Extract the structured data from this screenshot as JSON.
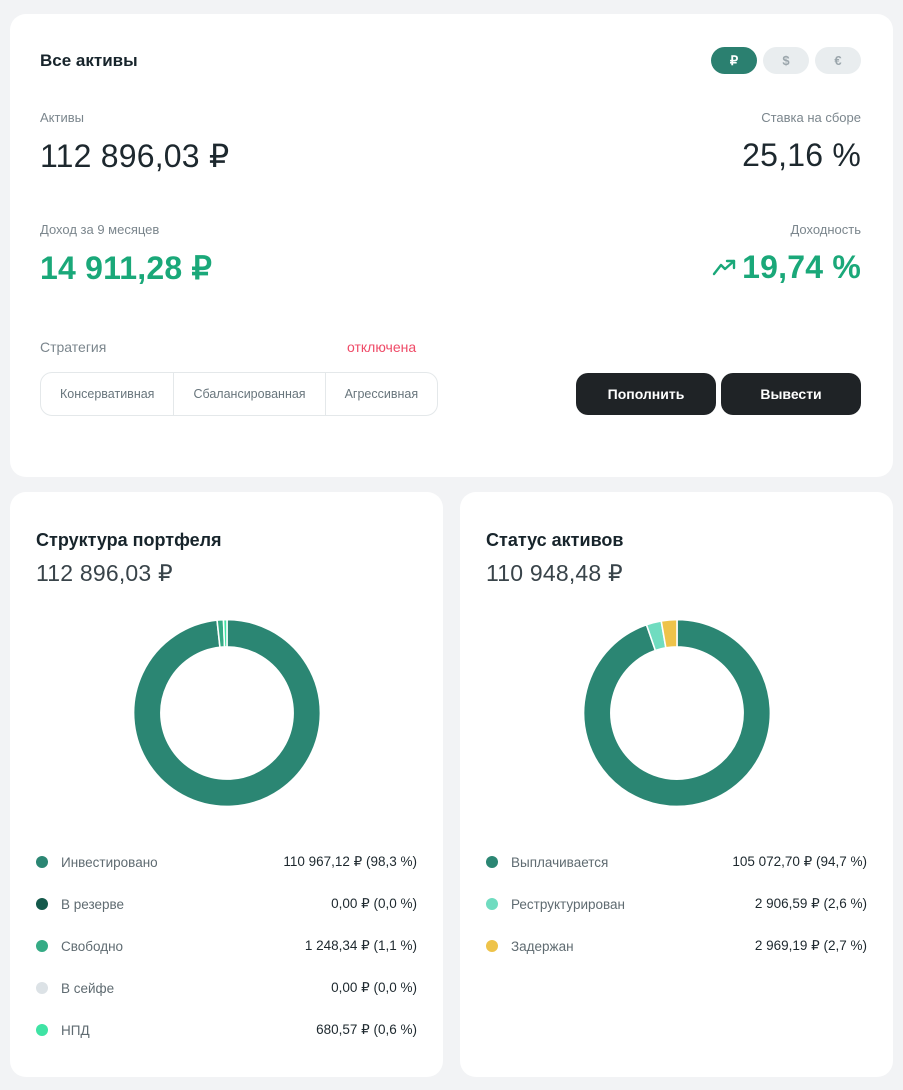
{
  "summary_card": {
    "title": "Все активы",
    "currency_toggle": [
      {
        "symbol": "₽",
        "active": true
      },
      {
        "symbol": "$",
        "active": false
      },
      {
        "symbol": "€",
        "active": false
      }
    ],
    "metrics": {
      "assets": {
        "label": "Активы",
        "value": "112 896,03 ₽"
      },
      "rate": {
        "label": "Ставка на сборе",
        "value": "25,16 %"
      },
      "income": {
        "label": "Доход за 9 месяцев",
        "value": "14 911,28 ₽"
      },
      "yield": {
        "label": "Доходность",
        "value": "19,74 %"
      }
    },
    "strategy": {
      "label": "Стратегия",
      "status": "отключена",
      "options": [
        "Консервативная",
        "Сбалансированная",
        "Агрессивная"
      ]
    },
    "actions": {
      "deposit": "Пополнить",
      "withdraw": "Вывести"
    }
  },
  "portfolio_card": {
    "title": "Структура портфеля",
    "total": "112 896,03 ₽",
    "legend": [
      {
        "label": "Инвестировано",
        "display": "110 967,12 ₽ (98,3 %)"
      },
      {
        "label": "В резерве",
        "display": "0,00 ₽ (0,0 %)"
      },
      {
        "label": "Свободно",
        "display": "1 248,34 ₽ (1,1 %)"
      },
      {
        "label": "В сейфе",
        "display": "0,00 ₽ (0,0 %)"
      },
      {
        "label": "НПД",
        "display": "680,57 ₽ (0,6 %)"
      }
    ]
  },
  "status_card": {
    "title": "Статус активов",
    "total": "110 948,48 ₽",
    "legend": [
      {
        "label": "Выплачивается",
        "display": "105 072,70 ₽ (94,7 %)"
      },
      {
        "label": "Реструктурирован",
        "display": "2 906,59 ₽ (2,6 %)"
      },
      {
        "label": "Задержан",
        "display": "2 969,19 ₽ (2,7 %)"
      }
    ]
  },
  "chart_data": [
    {
      "type": "pie",
      "title": "Структура портфеля",
      "total_label": "112 896,03 ₽",
      "labels": [
        "Инвестировано",
        "В резерве",
        "Свободно",
        "В сейфе",
        "НПД"
      ],
      "values": [
        110967.12,
        0.0,
        1248.34,
        0.0,
        680.57
      ],
      "percents": [
        98.3,
        0.0,
        1.1,
        0.0,
        0.6
      ],
      "colors": [
        "#2b8673",
        "#14594b",
        "#35ab85",
        "#dce2e6",
        "#3fe3a4"
      ],
      "donut": true,
      "legend_position": "bottom"
    },
    {
      "type": "pie",
      "title": "Статус активов",
      "total_label": "110 948,48 ₽",
      "labels": [
        "Выплачивается",
        "Реструктурирован",
        "Задержан"
      ],
      "values": [
        105072.7,
        2906.59,
        2969.19
      ],
      "percents": [
        94.7,
        2.6,
        2.7
      ],
      "colors": [
        "#2b8673",
        "#70dcc0",
        "#eec34a"
      ],
      "donut": true,
      "legend_position": "bottom"
    }
  ],
  "colors": {
    "accent_teal": "#2b8070",
    "positive_green": "#1aa879",
    "alert_pink": "#ef4a67",
    "button_dark": "#1f2326",
    "page_bg": "#f2f3f5"
  }
}
